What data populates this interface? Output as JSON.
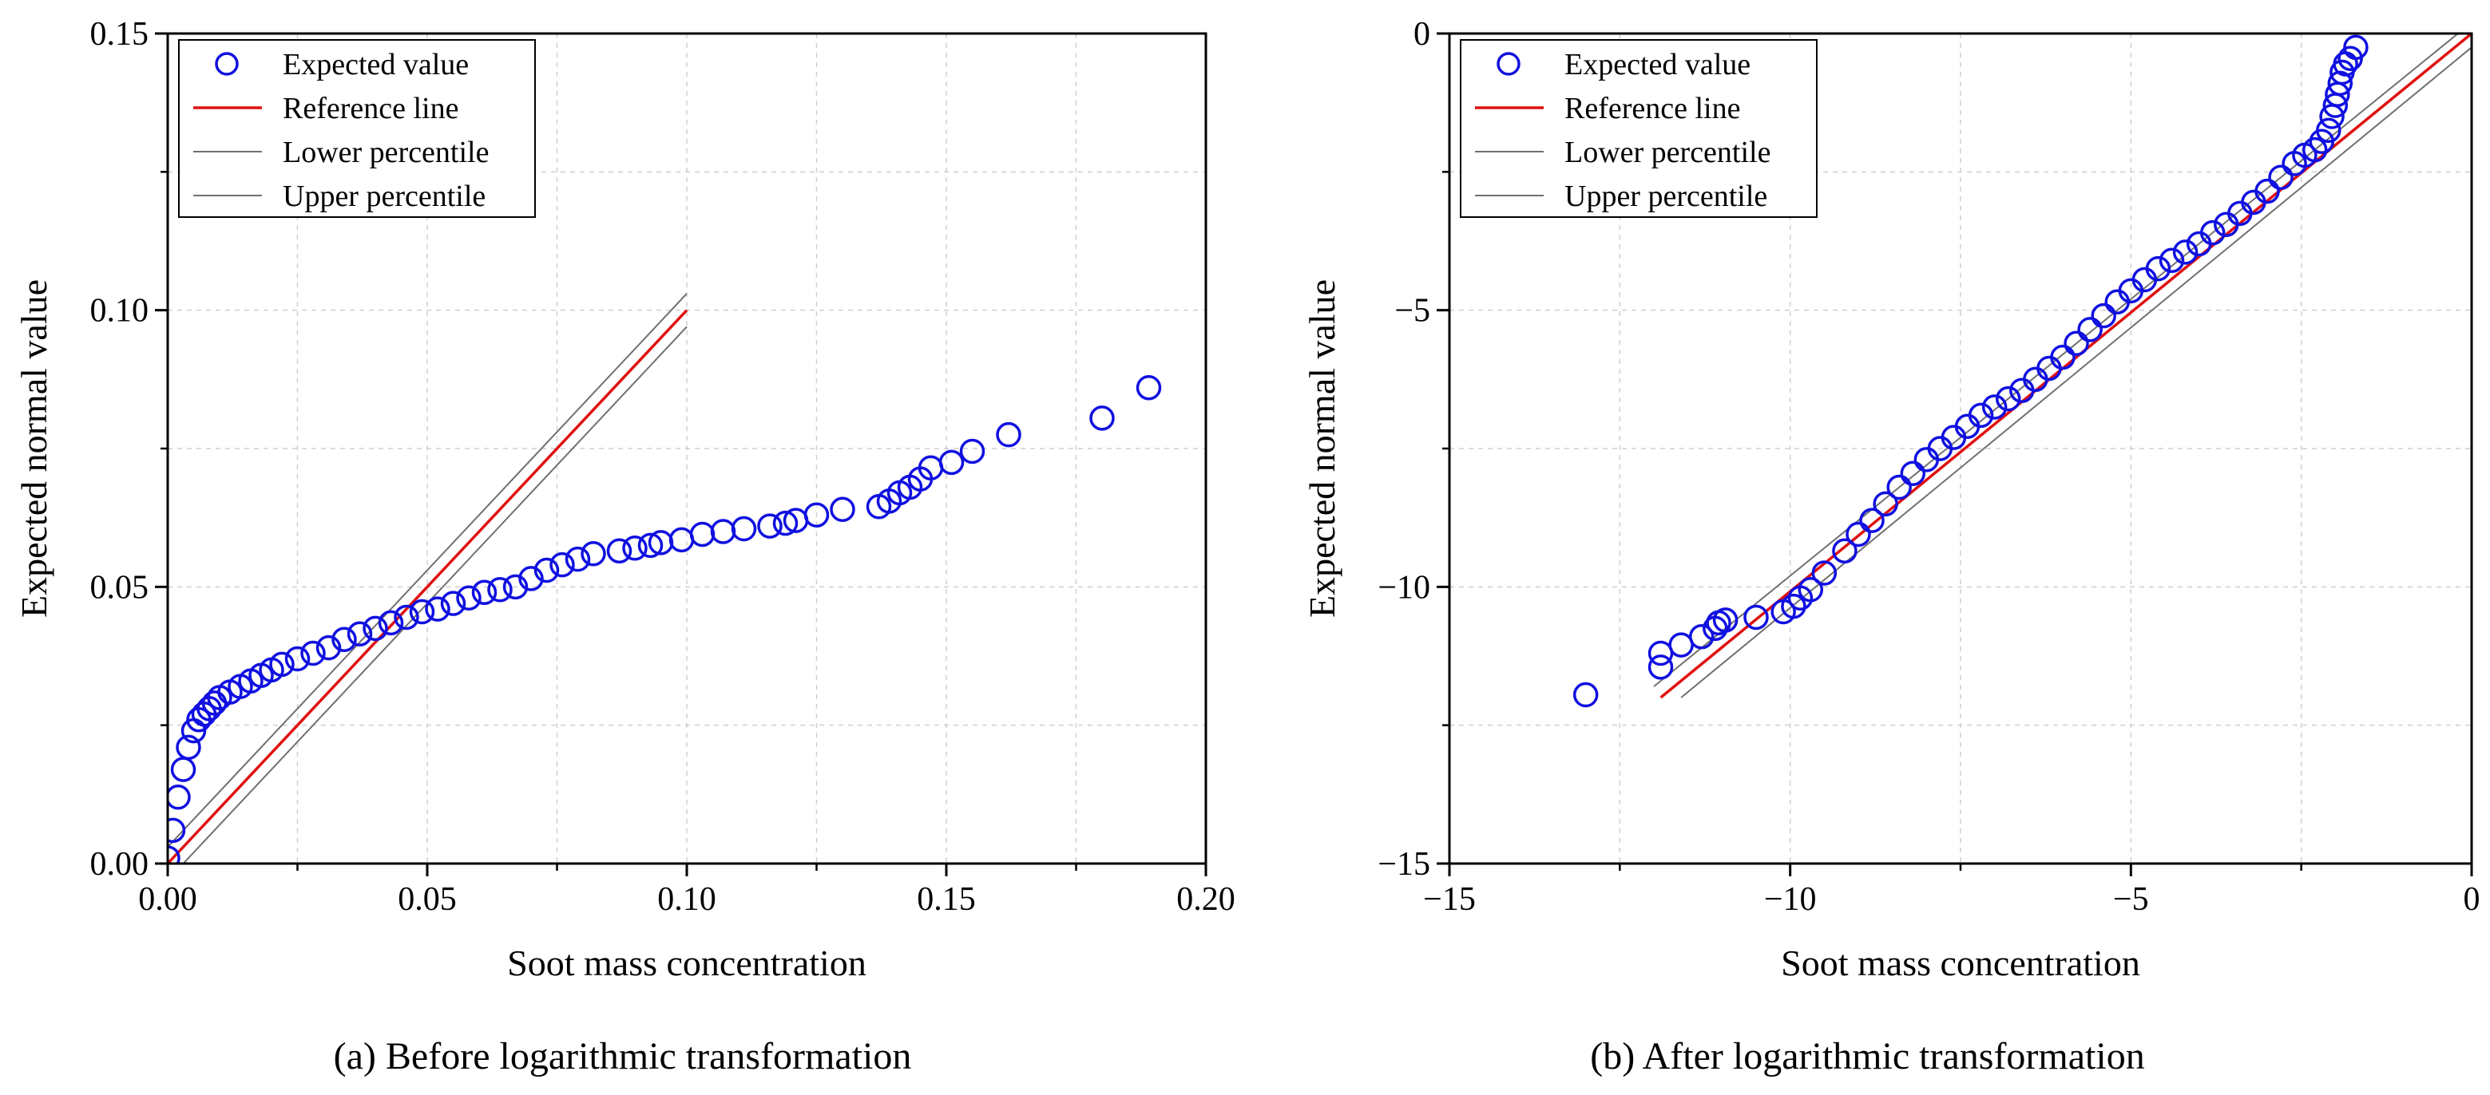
{
  "colors": {
    "points": "#1010e0",
    "reference": "#e01010",
    "percentile": "#707070",
    "grid": "#cfcfcf",
    "axis": "#000000"
  },
  "legend": [
    "Expected value",
    "Reference line",
    "Lower percentile",
    "Upper percentile"
  ],
  "chart_data": [
    {
      "type": "scatter",
      "caption": "(a) Before logarithmic transformation",
      "xlabel": "Soot mass concentration",
      "ylabel": "Expected normal value",
      "xlim": [
        0,
        0.2
      ],
      "ylim": [
        0,
        0.15
      ],
      "xticks": [
        0.0,
        0.05,
        0.1,
        0.15,
        0.2
      ],
      "xtick_labels": [
        "0.00",
        "0.05",
        "0.10",
        "0.15",
        "0.20"
      ],
      "yticks": [
        0.0,
        0.05,
        0.1,
        0.15
      ],
      "ytick_labels": [
        "0.00",
        "0.05",
        "0.10",
        "0.15"
      ],
      "grid": true,
      "legend_position": "top-left",
      "series": [
        {
          "name": "Expected value",
          "kind": "points",
          "x": [
            0.0,
            0.001,
            0.002,
            0.003,
            0.004,
            0.005,
            0.006,
            0.007,
            0.008,
            0.009,
            0.01,
            0.012,
            0.014,
            0.016,
            0.018,
            0.02,
            0.022,
            0.025,
            0.028,
            0.031,
            0.034,
            0.037,
            0.04,
            0.043,
            0.046,
            0.049,
            0.052,
            0.055,
            0.058,
            0.061,
            0.064,
            0.067,
            0.07,
            0.073,
            0.076,
            0.079,
            0.082,
            0.087,
            0.09,
            0.093,
            0.095,
            0.099,
            0.103,
            0.107,
            0.111,
            0.116,
            0.119,
            0.121,
            0.125,
            0.13,
            0.137,
            0.139,
            0.141,
            0.143,
            0.145,
            0.147,
            0.151,
            0.155,
            0.162,
            0.18,
            0.189
          ],
          "y": [
            0.001,
            0.006,
            0.012,
            0.017,
            0.021,
            0.024,
            0.026,
            0.027,
            0.028,
            0.029,
            0.03,
            0.031,
            0.032,
            0.033,
            0.034,
            0.035,
            0.036,
            0.037,
            0.038,
            0.039,
            0.0405,
            0.0415,
            0.0425,
            0.0435,
            0.0445,
            0.0455,
            0.046,
            0.047,
            0.048,
            0.049,
            0.0495,
            0.05,
            0.0515,
            0.053,
            0.054,
            0.055,
            0.056,
            0.0565,
            0.057,
            0.0575,
            0.058,
            0.0585,
            0.0595,
            0.06,
            0.0605,
            0.061,
            0.0615,
            0.062,
            0.063,
            0.064,
            0.0645,
            0.0655,
            0.067,
            0.068,
            0.0695,
            0.0715,
            0.0725,
            0.0745,
            0.0775,
            0.0805,
            0.086
          ]
        },
        {
          "name": "Reference line",
          "kind": "line",
          "x": [
            0.0,
            0.1
          ],
          "y": [
            0.0,
            0.1
          ]
        },
        {
          "name": "Lower percentile",
          "kind": "line",
          "x": [
            0.0,
            0.1
          ],
          "y": [
            -0.003,
            0.097
          ]
        },
        {
          "name": "Upper percentile",
          "kind": "line",
          "x": [
            0.0,
            0.1
          ],
          "y": [
            0.003,
            0.103
          ]
        }
      ]
    },
    {
      "type": "scatter",
      "caption": "(b) After logarithmic transformation",
      "xlabel": "Soot mass concentration",
      "ylabel": "Expected normal value",
      "xlim": [
        -15,
        0
      ],
      "ylim": [
        -15,
        0
      ],
      "xticks": [
        -15,
        -10,
        -5,
        0
      ],
      "xtick_labels": [
        "−15",
        "−10",
        "−5",
        "0"
      ],
      "yticks": [
        -15,
        -10,
        -5,
        0
      ],
      "ytick_labels": [
        "−15",
        "−10",
        "−5",
        "0"
      ],
      "grid": true,
      "legend_position": "top-left",
      "series": [
        {
          "name": "Expected value",
          "kind": "points",
          "x": [
            -13.0,
            -11.9,
            -11.9,
            -11.6,
            -11.3,
            -11.1,
            -11.05,
            -10.95,
            -10.5,
            -10.1,
            -9.95,
            -9.85,
            -9.7,
            -9.5,
            -9.2,
            -9.0,
            -8.8,
            -8.6,
            -8.4,
            -8.2,
            -8.0,
            -7.8,
            -7.6,
            -7.4,
            -7.2,
            -7.0,
            -6.8,
            -6.6,
            -6.4,
            -6.2,
            -6.0,
            -5.8,
            -5.6,
            -5.4,
            -5.2,
            -5.0,
            -4.8,
            -4.6,
            -4.4,
            -4.2,
            -4.0,
            -3.8,
            -3.6,
            -3.4,
            -3.2,
            -3.0,
            -2.8,
            -2.6,
            -2.45,
            -2.3,
            -2.2,
            -2.1,
            -2.05,
            -2.0,
            -1.97,
            -1.93,
            -1.9,
            -1.85,
            -1.78,
            -1.7
          ],
          "y": [
            -11.95,
            -11.45,
            -11.2,
            -11.05,
            -10.9,
            -10.75,
            -10.65,
            -10.6,
            -10.55,
            -10.45,
            -10.35,
            -10.2,
            -10.05,
            -9.75,
            -9.35,
            -9.05,
            -8.8,
            -8.5,
            -8.2,
            -7.95,
            -7.7,
            -7.5,
            -7.3,
            -7.1,
            -6.9,
            -6.75,
            -6.6,
            -6.45,
            -6.25,
            -6.05,
            -5.85,
            -5.6,
            -5.35,
            -5.1,
            -4.85,
            -4.65,
            -4.45,
            -4.25,
            -4.1,
            -3.95,
            -3.8,
            -3.6,
            -3.45,
            -3.25,
            -3.05,
            -2.85,
            -2.6,
            -2.35,
            -2.2,
            -2.1,
            -1.95,
            -1.75,
            -1.5,
            -1.3,
            -1.1,
            -0.9,
            -0.7,
            -0.55,
            -0.45,
            -0.25
          ]
        },
        {
          "name": "Reference line",
          "kind": "line",
          "x": [
            -11.9,
            0.0
          ],
          "y": [
            -12.0,
            0.0
          ]
        },
        {
          "name": "Lower percentile",
          "kind": "line",
          "x": [
            -11.6,
            0.0
          ],
          "y": [
            -12.0,
            -0.25
          ]
        },
        {
          "name": "Upper percentile",
          "kind": "line",
          "x": [
            -12.0,
            0.0
          ],
          "y": [
            -11.8,
            0.2
          ]
        }
      ]
    }
  ]
}
